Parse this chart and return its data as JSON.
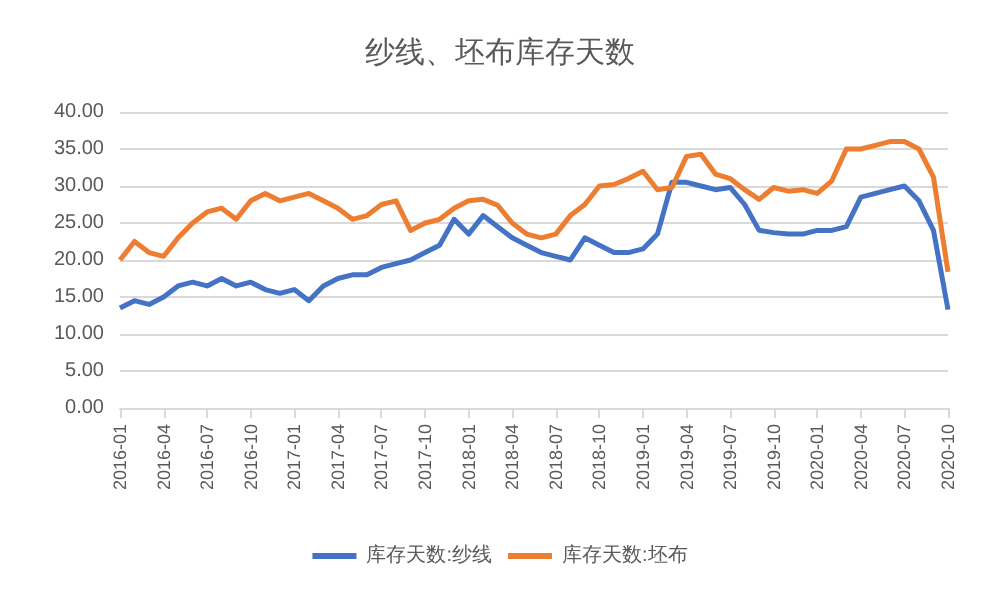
{
  "chart_data": {
    "type": "line",
    "title": "纱线、坯布库存天数",
    "categories": [
      "2016-01",
      null,
      null,
      "2016-04",
      null,
      null,
      "2016-07",
      null,
      null,
      "2016-10",
      null,
      null,
      "2017-01",
      null,
      null,
      "2017-04",
      null,
      null,
      "2017-07",
      null,
      null,
      "2017-10",
      null,
      null,
      "2018-01",
      null,
      null,
      "2018-04",
      null,
      null,
      "2018-07",
      null,
      null,
      "2018-10",
      null,
      null,
      "2019-01",
      null,
      null,
      "2019-04",
      null,
      null,
      "2019-07",
      null,
      null,
      "2019-10",
      null,
      null,
      "2020-01",
      null,
      null,
      "2020-04",
      null,
      null,
      "2020-07",
      null,
      null,
      "2020-10"
    ],
    "series": [
      {
        "name": "库存天数:纱线",
        "color": "#4472c4",
        "values": [
          13.5,
          14.5,
          14,
          15,
          16.5,
          17,
          16.5,
          17.5,
          16.5,
          17,
          16,
          15.5,
          16,
          14.5,
          16.5,
          17.5,
          18,
          18,
          19,
          19.5,
          20,
          21,
          22,
          25.5,
          23.5,
          26,
          24.5,
          23,
          22,
          21,
          20.5,
          20,
          23,
          22,
          21,
          21,
          21.5,
          23.5,
          30.5,
          30.5,
          30,
          29.5,
          29.8,
          27.5,
          24,
          23.7,
          23.5,
          23.5,
          24,
          24,
          24.5,
          28.5,
          29,
          29.5,
          30,
          28,
          24,
          13.3
        ]
      },
      {
        "name": "库存天数:坯布",
        "color": "#ed7d31",
        "values": [
          20,
          22.5,
          21,
          20.5,
          23,
          25,
          26.5,
          27,
          25.5,
          28,
          29,
          28,
          28.5,
          29,
          28,
          27,
          25.5,
          26,
          27.5,
          28,
          24,
          25,
          25.5,
          27,
          28,
          28.2,
          27.4,
          25,
          23.5,
          23,
          23.5,
          26,
          27.5,
          30,
          30.2,
          31,
          32,
          29.5,
          29.8,
          34,
          34.3,
          31.6,
          31,
          29.5,
          28.2,
          29.8,
          29.3,
          29.5,
          29,
          30.7,
          35,
          35,
          35.5,
          36,
          36,
          35,
          31.2,
          18.4
        ]
      }
    ],
    "ylim": [
      0,
      40
    ],
    "yticks": [
      {
        "value": 0,
        "label": "0.00"
      },
      {
        "value": 5,
        "label": "5.00"
      },
      {
        "value": 10,
        "label": "10.00"
      },
      {
        "value": 15,
        "label": "15.00"
      },
      {
        "value": 20,
        "label": "20.00"
      },
      {
        "value": 25,
        "label": "25.00"
      },
      {
        "value": 30,
        "label": "30.00"
      },
      {
        "value": 35,
        "label": "35.00"
      },
      {
        "value": 40,
        "label": "40.00"
      }
    ],
    "grid": "y",
    "legend": "bottom",
    "marker": "none",
    "line_style": "solid"
  }
}
